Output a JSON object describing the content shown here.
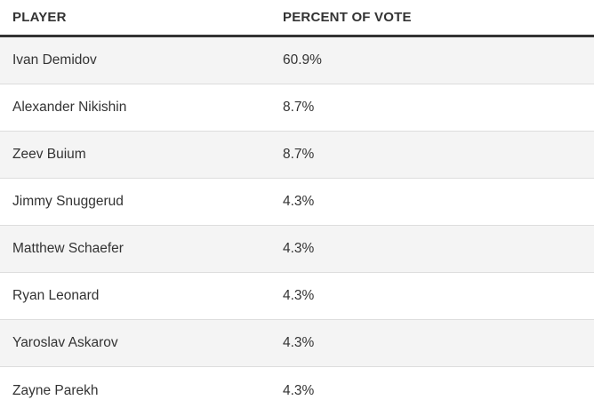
{
  "chart_data": {
    "type": "table",
    "columns": [
      "PLAYER",
      "PERCENT OF VOTE"
    ],
    "rows": [
      {
        "player": "Ivan Demidov",
        "percent": "60.9%"
      },
      {
        "player": "Alexander Nikishin",
        "percent": "8.7%"
      },
      {
        "player": "Zeev Buium",
        "percent": "8.7%"
      },
      {
        "player": "Jimmy Snuggerud",
        "percent": "4.3%"
      },
      {
        "player": "Matthew Schaefer",
        "percent": "4.3%"
      },
      {
        "player": "Ryan Leonard",
        "percent": "4.3%"
      },
      {
        "player": "Yaroslav Askarov",
        "percent": "4.3%"
      },
      {
        "player": "Zayne Parekh",
        "percent": "4.3%"
      }
    ]
  }
}
